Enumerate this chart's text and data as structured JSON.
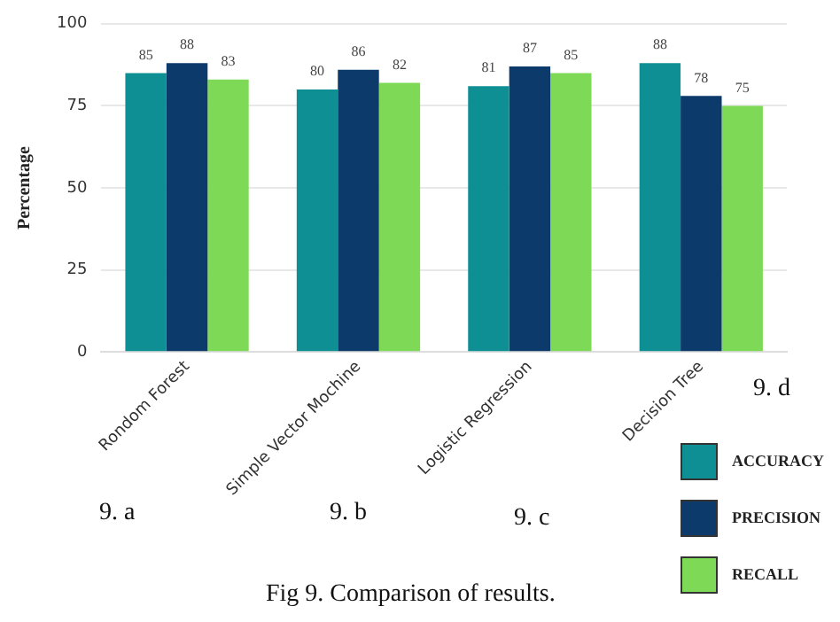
{
  "chart_data": {
    "type": "bar",
    "categories": [
      "Rondom Forest",
      "Simple Vector Mochine",
      "Logistic Regression",
      "Decision Tree"
    ],
    "series": [
      {
        "name": "ACCURACY",
        "color": "#0e8f94",
        "values": [
          85,
          80,
          81,
          88
        ]
      },
      {
        "name": "PRECISION",
        "color": "#0c3a6b",
        "values": [
          88,
          86,
          87,
          78
        ]
      },
      {
        "name": "RECALL",
        "color": "#7ed957",
        "values": [
          83,
          82,
          85,
          75
        ]
      }
    ],
    "ylabel": "Percentage",
    "ylim": [
      0,
      100
    ],
    "yticks": [
      0,
      25,
      50,
      75,
      100
    ],
    "grid": "y",
    "data_labels": true,
    "legend": "bottom right",
    "annotations": [
      "9. a",
      "9. b",
      "9. c",
      "9. d",
      "Fig 9.  Comparison of results."
    ]
  }
}
